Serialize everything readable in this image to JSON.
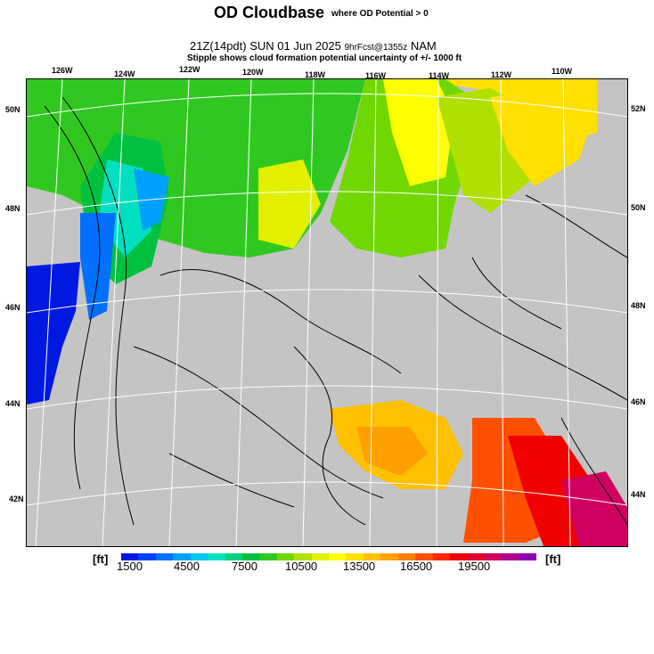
{
  "header": {
    "title": "OD Cloudbase",
    "title_note": "where OD Potential > 0",
    "valid_time": "21Z(14pdt) SUN 01 Jun 2025",
    "forecast_info": "9hrFcst@1355z",
    "model": "NAM",
    "stipple_note": "Stipple shows cloud formation potential uncertainty of +/- 1000 ft"
  },
  "map": {
    "top_lon_labels": [
      "126W",
      "124W",
      "122W",
      "120W",
      "118W",
      "116W",
      "114W",
      "112W",
      "110W"
    ],
    "left_lat_labels": [
      "50N",
      "48N",
      "46N",
      "44N",
      "42N"
    ],
    "right_lat_labels": [
      "52N",
      "50N",
      "48N",
      "46N",
      "44N"
    ],
    "background_color": "#c4c4c4"
  },
  "colorbar": {
    "unit_left": "[ft]",
    "unit_right": "[ft]",
    "labels": [
      "1500",
      "4500",
      "7500",
      "10500",
      "13500",
      "16500",
      "19500"
    ],
    "colors": [
      "#0018e0",
      "#0040ff",
      "#0070ff",
      "#00a0ff",
      "#00c8f0",
      "#00e0c0",
      "#00d080",
      "#00c040",
      "#30c820",
      "#70d800",
      "#b0e000",
      "#e0f000",
      "#ffff00",
      "#ffe000",
      "#ffc000",
      "#ffa000",
      "#ff8000",
      "#ff5000",
      "#ff2800",
      "#f00000",
      "#e00030",
      "#d00060",
      "#b00090",
      "#9000b0"
    ]
  }
}
